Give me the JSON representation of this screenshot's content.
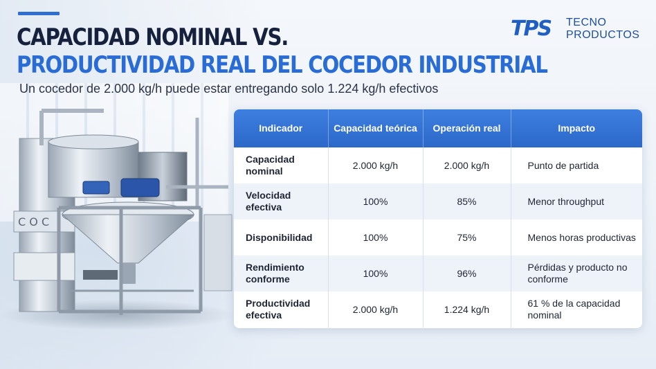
{
  "header": {
    "title_line1": "CAPACIDAD NOMINAL VS.",
    "title_line2": "PRODUCTIVIDAD REAL DEL COCEDOR INDUSTRIAL",
    "subtitle": "Un cocedor de 2.000 kg/h puede estar entregando solo 1.224 kg/h efectivos"
  },
  "logo": {
    "mark": "TPS",
    "line1": "TECNO",
    "line2": "PRODUCTOS"
  },
  "colors": {
    "accent": "#2a6cd6",
    "title_dark": "#16213d",
    "table_header": "#2c68c8"
  },
  "table": {
    "columns": [
      "Indicador",
      "Capacidad teórica",
      "Operación real",
      "Impacto"
    ],
    "rows": [
      {
        "indicador": "Capacidad nominal",
        "teorica": "2.000 kg/h",
        "real": "2.000 kg/h",
        "impacto": "Punto de partida"
      },
      {
        "indicador": "Velocidad efectiva",
        "teorica": "100%",
        "real": "85%",
        "impacto": "Menor throughput"
      },
      {
        "indicador": "Disponibilidad",
        "teorica": "100%",
        "real": "75%",
        "impacto": "Menos horas productivas"
      },
      {
        "indicador": "Rendimiento conforme",
        "teorica": "100%",
        "real": "96%",
        "impacto": "Pérdidas y producto no conforme"
      },
      {
        "indicador": "Productividad efectiva",
        "teorica": "2.000 kg/h",
        "real": "1.224 kg/h",
        "impacto": "61 % de la capacidad nominal"
      }
    ]
  },
  "image": {
    "icon": "industrial-cooker-machine-illustration"
  }
}
